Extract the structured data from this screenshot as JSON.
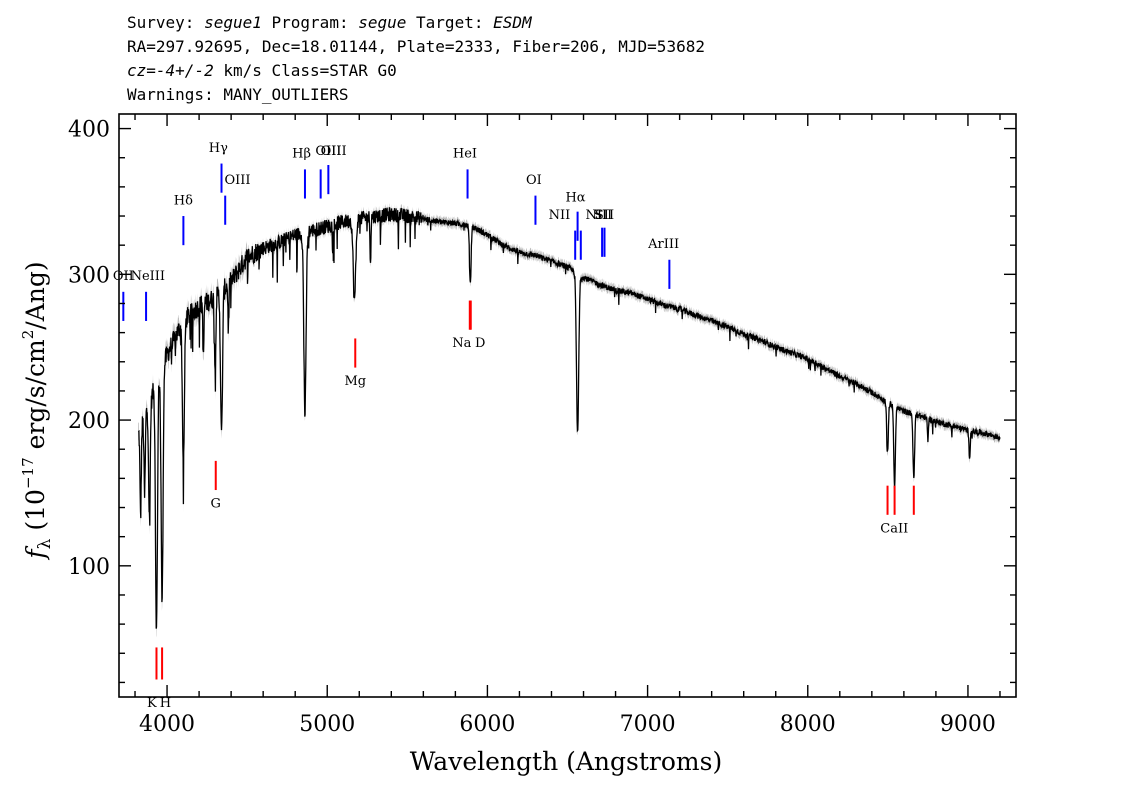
{
  "header": {
    "survey_label": "Survey:",
    "survey": "segue1",
    "program_label": "Program:",
    "program": "segue",
    "target_label": "Target:",
    "target": "ESDM",
    "line2": "RA=297.92695, Dec=18.01144, Plate=2333, Fiber=206, MJD=53682",
    "cz_prefix": "cz=",
    "cz_value": "-4+/-2",
    "cz_suffix": " km/s Class=STAR G0",
    "warnings": "Warnings: MANY_OUTLIERS"
  },
  "chart_data": {
    "type": "line",
    "xlabel": "Wavelength (Angstroms)",
    "ylabel": "f_λ (10^-17 erg/s/cm^2/Ang)",
    "ylabel_parts": {
      "f": "f",
      "sub": "λ",
      "open": " (10",
      "exp1": "−17",
      "mid": " erg/s/cm",
      "exp2": "2",
      "close": "/Ang)"
    },
    "xlim": [
      3700,
      9300
    ],
    "ylim": [
      10,
      410
    ],
    "xticks": [
      4000,
      5000,
      6000,
      7000,
      8000,
      9000
    ],
    "yticks": [
      100,
      200,
      300,
      400
    ],
    "colors": {
      "spectrum": "#000000",
      "error": "#b4b4b4",
      "emission": "#0000ff",
      "absorption": "#ff0000"
    },
    "continuum": [
      [
        3820,
        190
      ],
      [
        3900,
        215
      ],
      [
        4000,
        245
      ],
      [
        4100,
        268
      ],
      [
        4200,
        278
      ],
      [
        4300,
        284
      ],
      [
        4400,
        295
      ],
      [
        4500,
        312
      ],
      [
        4600,
        318
      ],
      [
        4700,
        322
      ],
      [
        4800,
        327
      ],
      [
        4900,
        330
      ],
      [
        5000,
        333
      ],
      [
        5100,
        336
      ],
      [
        5200,
        338
      ],
      [
        5300,
        340
      ],
      [
        5400,
        341
      ],
      [
        5500,
        340
      ],
      [
        5600,
        338
      ],
      [
        5700,
        336
      ],
      [
        5800,
        335
      ],
      [
        5900,
        333
      ],
      [
        6000,
        327
      ],
      [
        6100,
        320
      ],
      [
        6200,
        315
      ],
      [
        6300,
        313
      ],
      [
        6400,
        309
      ],
      [
        6500,
        305
      ],
      [
        6600,
        298
      ],
      [
        6700,
        293
      ],
      [
        6800,
        289
      ],
      [
        6900,
        287
      ],
      [
        7000,
        283
      ],
      [
        7100,
        279
      ],
      [
        7200,
        276
      ],
      [
        7300,
        272
      ],
      [
        7400,
        268
      ],
      [
        7500,
        264
      ],
      [
        7600,
        259
      ],
      [
        7700,
        255
      ],
      [
        7800,
        250
      ],
      [
        7900,
        246
      ],
      [
        8000,
        242
      ],
      [
        8100,
        236
      ],
      [
        8200,
        230
      ],
      [
        8300,
        225
      ],
      [
        8400,
        219
      ],
      [
        8500,
        212
      ],
      [
        8600,
        206
      ],
      [
        8700,
        203
      ],
      [
        8800,
        199
      ],
      [
        8900,
        196
      ],
      [
        9000,
        193
      ],
      [
        9100,
        191
      ],
      [
        9200,
        188
      ]
    ],
    "absorption_features": [
      {
        "wave": 3835,
        "depth": 60,
        "width": 4
      },
      {
        "wave": 3860,
        "depth": 55,
        "width": 4
      },
      {
        "wave": 3890,
        "depth": 80,
        "width": 5
      },
      {
        "wave": 3934,
        "depth": 170,
        "width": 6
      },
      {
        "wave": 3969,
        "depth": 160,
        "width": 6
      },
      {
        "wave": 4102,
        "depth": 100,
        "width": 6
      },
      {
        "wave": 4227,
        "depth": 40,
        "width": 3
      },
      {
        "wave": 4300,
        "depth": 50,
        "width": 4
      },
      {
        "wave": 4340,
        "depth": 100,
        "width": 6
      },
      {
        "wave": 4383,
        "depth": 30,
        "width": 3
      },
      {
        "wave": 4861,
        "depth": 125,
        "width": 7
      },
      {
        "wave": 5170,
        "depth": 55,
        "width": 8
      },
      {
        "wave": 5270,
        "depth": 30,
        "width": 3
      },
      {
        "wave": 5893,
        "depth": 40,
        "width": 5
      },
      {
        "wave": 6563,
        "depth": 110,
        "width": 7
      },
      {
        "wave": 8498,
        "depth": 35,
        "width": 5
      },
      {
        "wave": 8542,
        "depth": 55,
        "width": 5
      },
      {
        "wave": 8662,
        "depth": 45,
        "width": 5
      },
      {
        "wave": 8750,
        "depth": 15,
        "width": 3
      },
      {
        "wave": 9010,
        "depth": 18,
        "width": 4
      }
    ],
    "emission_lines": [
      {
        "label": "OII",
        "wave": 3727,
        "y1": 268,
        "y2": 288,
        "lx": 3727,
        "ly": 296
      },
      {
        "label": "NeIII",
        "wave": 3869,
        "y1": 268,
        "y2": 288,
        "lx": 3880,
        "ly": 296
      },
      {
        "label": "Hδ",
        "wave": 4102,
        "y1": 320,
        "y2": 340,
        "lx": 4102,
        "ly": 348
      },
      {
        "label": "Hγ",
        "wave": 4340,
        "y1": 356,
        "y2": 376,
        "lx": 4320,
        "ly": 384
      },
      {
        "label": "OIII",
        "wave": 4363,
        "y1": 334,
        "y2": 354,
        "lx": 4440,
        "ly": 362
      },
      {
        "label": "Hβ",
        "wave": 4861,
        "y1": 352,
        "y2": 372,
        "lx": 4840,
        "ly": 380
      },
      {
        "label": "OIII",
        "wave": 4959,
        "y1": 352,
        "y2": 372,
        "lx": 5040,
        "ly": 382
      },
      {
        "label": "OIII",
        "wave": 5007,
        "y1": 355,
        "y2": 375,
        "lx": 5007,
        "ly": 382
      },
      {
        "label": "HeI",
        "wave": 5876,
        "y1": 352,
        "y2": 372,
        "lx": 5860,
        "ly": 380
      },
      {
        "label": "OI",
        "wave": 6300,
        "y1": 334,
        "y2": 354,
        "lx": 6290,
        "ly": 362
      },
      {
        "label": "NII",
        "wave": 6548,
        "y1": 310,
        "y2": 330,
        "lx": 6450,
        "ly": 338
      },
      {
        "label": "Hα",
        "wave": 6563,
        "y1": 323,
        "y2": 343,
        "lx": 6550,
        "ly": 350
      },
      {
        "label": "NII",
        "wave": 6583,
        "y1": 310,
        "y2": 330,
        "lx": 6680,
        "ly": 338
      },
      {
        "label": "SII",
        "wave": 6716,
        "y1": 312,
        "y2": 332,
        "lx": 6720,
        "ly": 338
      },
      {
        "label": "SII",
        "wave": 6731,
        "y1": 312,
        "y2": 332,
        "lx": 6731,
        "ly": 338
      },
      {
        "label": "ArIII",
        "wave": 7136,
        "y1": 290,
        "y2": 310,
        "lx": 7100,
        "ly": 318
      }
    ],
    "absorption_lines": [
      {
        "label": "K",
        "wave": 3934,
        "y1": 22,
        "y2": 44,
        "lx": 3905,
        "ly": 3
      },
      {
        "label": "H",
        "wave": 3969,
        "y1": 22,
        "y2": 44,
        "lx": 3990,
        "ly": 3
      },
      {
        "label": "G",
        "wave": 4304,
        "y1": 152,
        "y2": 172,
        "lx": 4304,
        "ly": 140
      },
      {
        "label": "Mg",
        "wave": 5175,
        "y1": 236,
        "y2": 256,
        "lx": 5175,
        "ly": 224
      },
      {
        "label": "Na",
        "wave": 5890,
        "y1": 262,
        "y2": 282,
        "lx": 5840,
        "ly": 250
      },
      {
        "label": "D",
        "wave": 5896,
        "y1": 262,
        "y2": 282,
        "lx": 5955,
        "ly": 250
      },
      {
        "label": "CaII",
        "wave": 8498,
        "y1": 135,
        "y2": 155,
        "lx": 8540,
        "ly": 123
      },
      {
        "label": "",
        "wave": 8542,
        "y1": 135,
        "y2": 155,
        "lx": 8542,
        "ly": 123
      },
      {
        "label": "",
        "wave": 8662,
        "y1": 135,
        "y2": 155,
        "lx": 8662,
        "ly": 123
      }
    ]
  }
}
